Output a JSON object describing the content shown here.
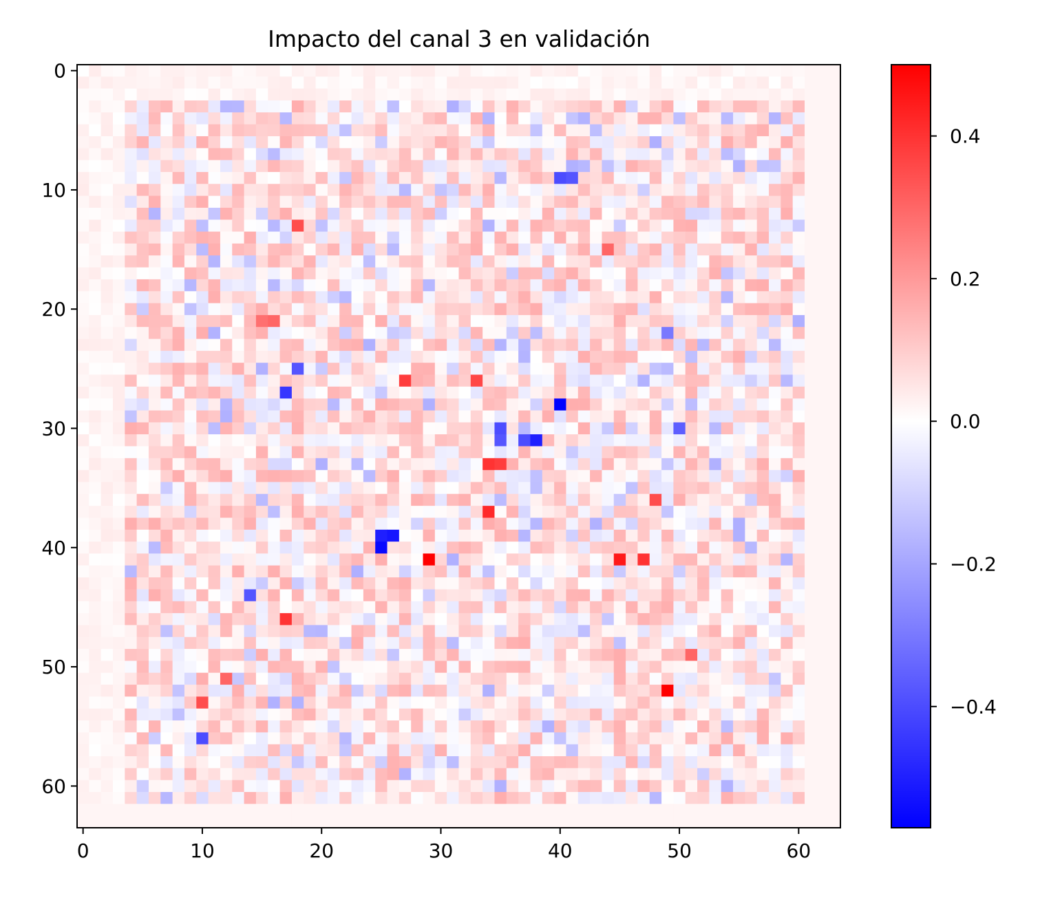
{
  "chart_data": {
    "type": "heatmap",
    "title": "Impacto del canal 3 en validación",
    "xlabel": "",
    "ylabel": "",
    "rows": 64,
    "cols": 64,
    "xlim": [
      -0.5,
      63.5
    ],
    "ylim": [
      63.5,
      -0.5
    ],
    "x_ticks": [
      0,
      10,
      20,
      30,
      40,
      50,
      60
    ],
    "y_ticks": [
      0,
      10,
      20,
      30,
      40,
      50,
      60
    ],
    "x_tick_labels": [
      "0",
      "10",
      "20",
      "30",
      "40",
      "50",
      "60"
    ],
    "y_tick_labels": [
      "0",
      "10",
      "20",
      "30",
      "40",
      "50",
      "60"
    ],
    "colormap": "bwr",
    "colormap_colors": [
      "#0000ff",
      "#ffffff",
      "#ff0000"
    ],
    "value_range": [
      -0.57,
      0.5
    ],
    "colorbar_ticks": [
      0.4,
      0.2,
      0.0,
      -0.2,
      -0.4
    ],
    "colorbar_tick_labels": [
      "0.4",
      "0.2",
      "0.0",
      "−0.2",
      "−0.4"
    ],
    "grid": false,
    "legend": "colorbar-right",
    "background_value": 0.02,
    "notable_cells": [
      {
        "row": 28,
        "col": 40,
        "value": -0.57
      },
      {
        "row": 40,
        "col": 25,
        "value": -0.55
      },
      {
        "row": 39,
        "col": 25,
        "value": -0.5
      },
      {
        "row": 39,
        "col": 26,
        "value": -0.52
      },
      {
        "row": 31,
        "col": 38,
        "value": -0.5
      },
      {
        "row": 31,
        "col": 37,
        "value": -0.4
      },
      {
        "row": 30,
        "col": 35,
        "value": -0.4
      },
      {
        "row": 31,
        "col": 35,
        "value": -0.38
      },
      {
        "row": 27,
        "col": 17,
        "value": -0.45
      },
      {
        "row": 25,
        "col": 18,
        "value": -0.38
      },
      {
        "row": 9,
        "col": 40,
        "value": -0.4
      },
      {
        "row": 9,
        "col": 41,
        "value": -0.38
      },
      {
        "row": 56,
        "col": 10,
        "value": -0.4
      },
      {
        "row": 44,
        "col": 14,
        "value": -0.38
      },
      {
        "row": 30,
        "col": 50,
        "value": -0.36
      },
      {
        "row": 22,
        "col": 49,
        "value": -0.3
      },
      {
        "row": 41,
        "col": 29,
        "value": 0.5
      },
      {
        "row": 52,
        "col": 49,
        "value": 0.5
      },
      {
        "row": 41,
        "col": 45,
        "value": 0.45
      },
      {
        "row": 41,
        "col": 47,
        "value": 0.4
      },
      {
        "row": 33,
        "col": 34,
        "value": 0.4
      },
      {
        "row": 33,
        "col": 35,
        "value": 0.38
      },
      {
        "row": 37,
        "col": 34,
        "value": 0.42
      },
      {
        "row": 26,
        "col": 27,
        "value": 0.38
      },
      {
        "row": 26,
        "col": 33,
        "value": 0.36
      },
      {
        "row": 13,
        "col": 18,
        "value": 0.35
      },
      {
        "row": 46,
        "col": 17,
        "value": 0.4
      },
      {
        "row": 53,
        "col": 10,
        "value": 0.35
      },
      {
        "row": 21,
        "col": 16,
        "value": 0.3
      },
      {
        "row": 21,
        "col": 15,
        "value": 0.28
      },
      {
        "row": 36,
        "col": 48,
        "value": 0.35
      },
      {
        "row": 15,
        "col": 44,
        "value": 0.3
      },
      {
        "row": 51,
        "col": 12,
        "value": 0.3
      },
      {
        "row": 49,
        "col": 51,
        "value": 0.3
      }
    ]
  }
}
